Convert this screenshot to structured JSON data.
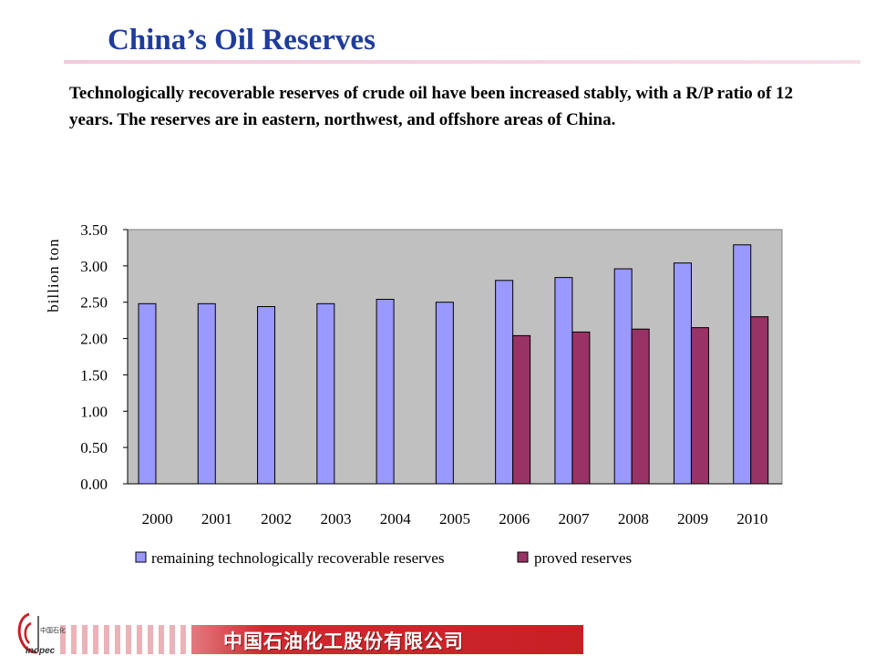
{
  "slide": {
    "title": "China’s Oil Reserves",
    "intro": "Technologically recoverable reserves of crude oil have been increased stably, with a R/P ratio of 12 years. The reserves are in eastern, northwest, and offshore areas of China.",
    "footer": "中国石油化工股份有限公司",
    "logo_text": "Sinopec"
  },
  "chart_data": {
    "type": "bar",
    "title": "",
    "xlabel": "",
    "ylabel": "billion ton",
    "ylim": [
      0,
      3.5
    ],
    "yticks": [
      "0.00",
      "0.50",
      "1.00",
      "1.50",
      "2.00",
      "2.50",
      "3.00",
      "3.50"
    ],
    "categories": [
      "2000",
      "2001",
      "2002",
      "2003",
      "2004",
      "2005",
      "2006",
      "2007",
      "2008",
      "2009",
      "2010"
    ],
    "series": [
      {
        "name": "remaining technologically recoverable reserves",
        "color": "#9999ff",
        "values": [
          2.48,
          2.48,
          2.44,
          2.48,
          2.54,
          2.5,
          2.8,
          2.84,
          2.96,
          3.04,
          3.29
        ]
      },
      {
        "name": "proved reserves",
        "color": "#993366",
        "values": [
          null,
          null,
          null,
          null,
          null,
          null,
          2.04,
          2.09,
          2.13,
          2.15,
          2.3
        ]
      }
    ],
    "grid": false,
    "plot_background": "#c0c0c0",
    "legend": "bottom"
  }
}
